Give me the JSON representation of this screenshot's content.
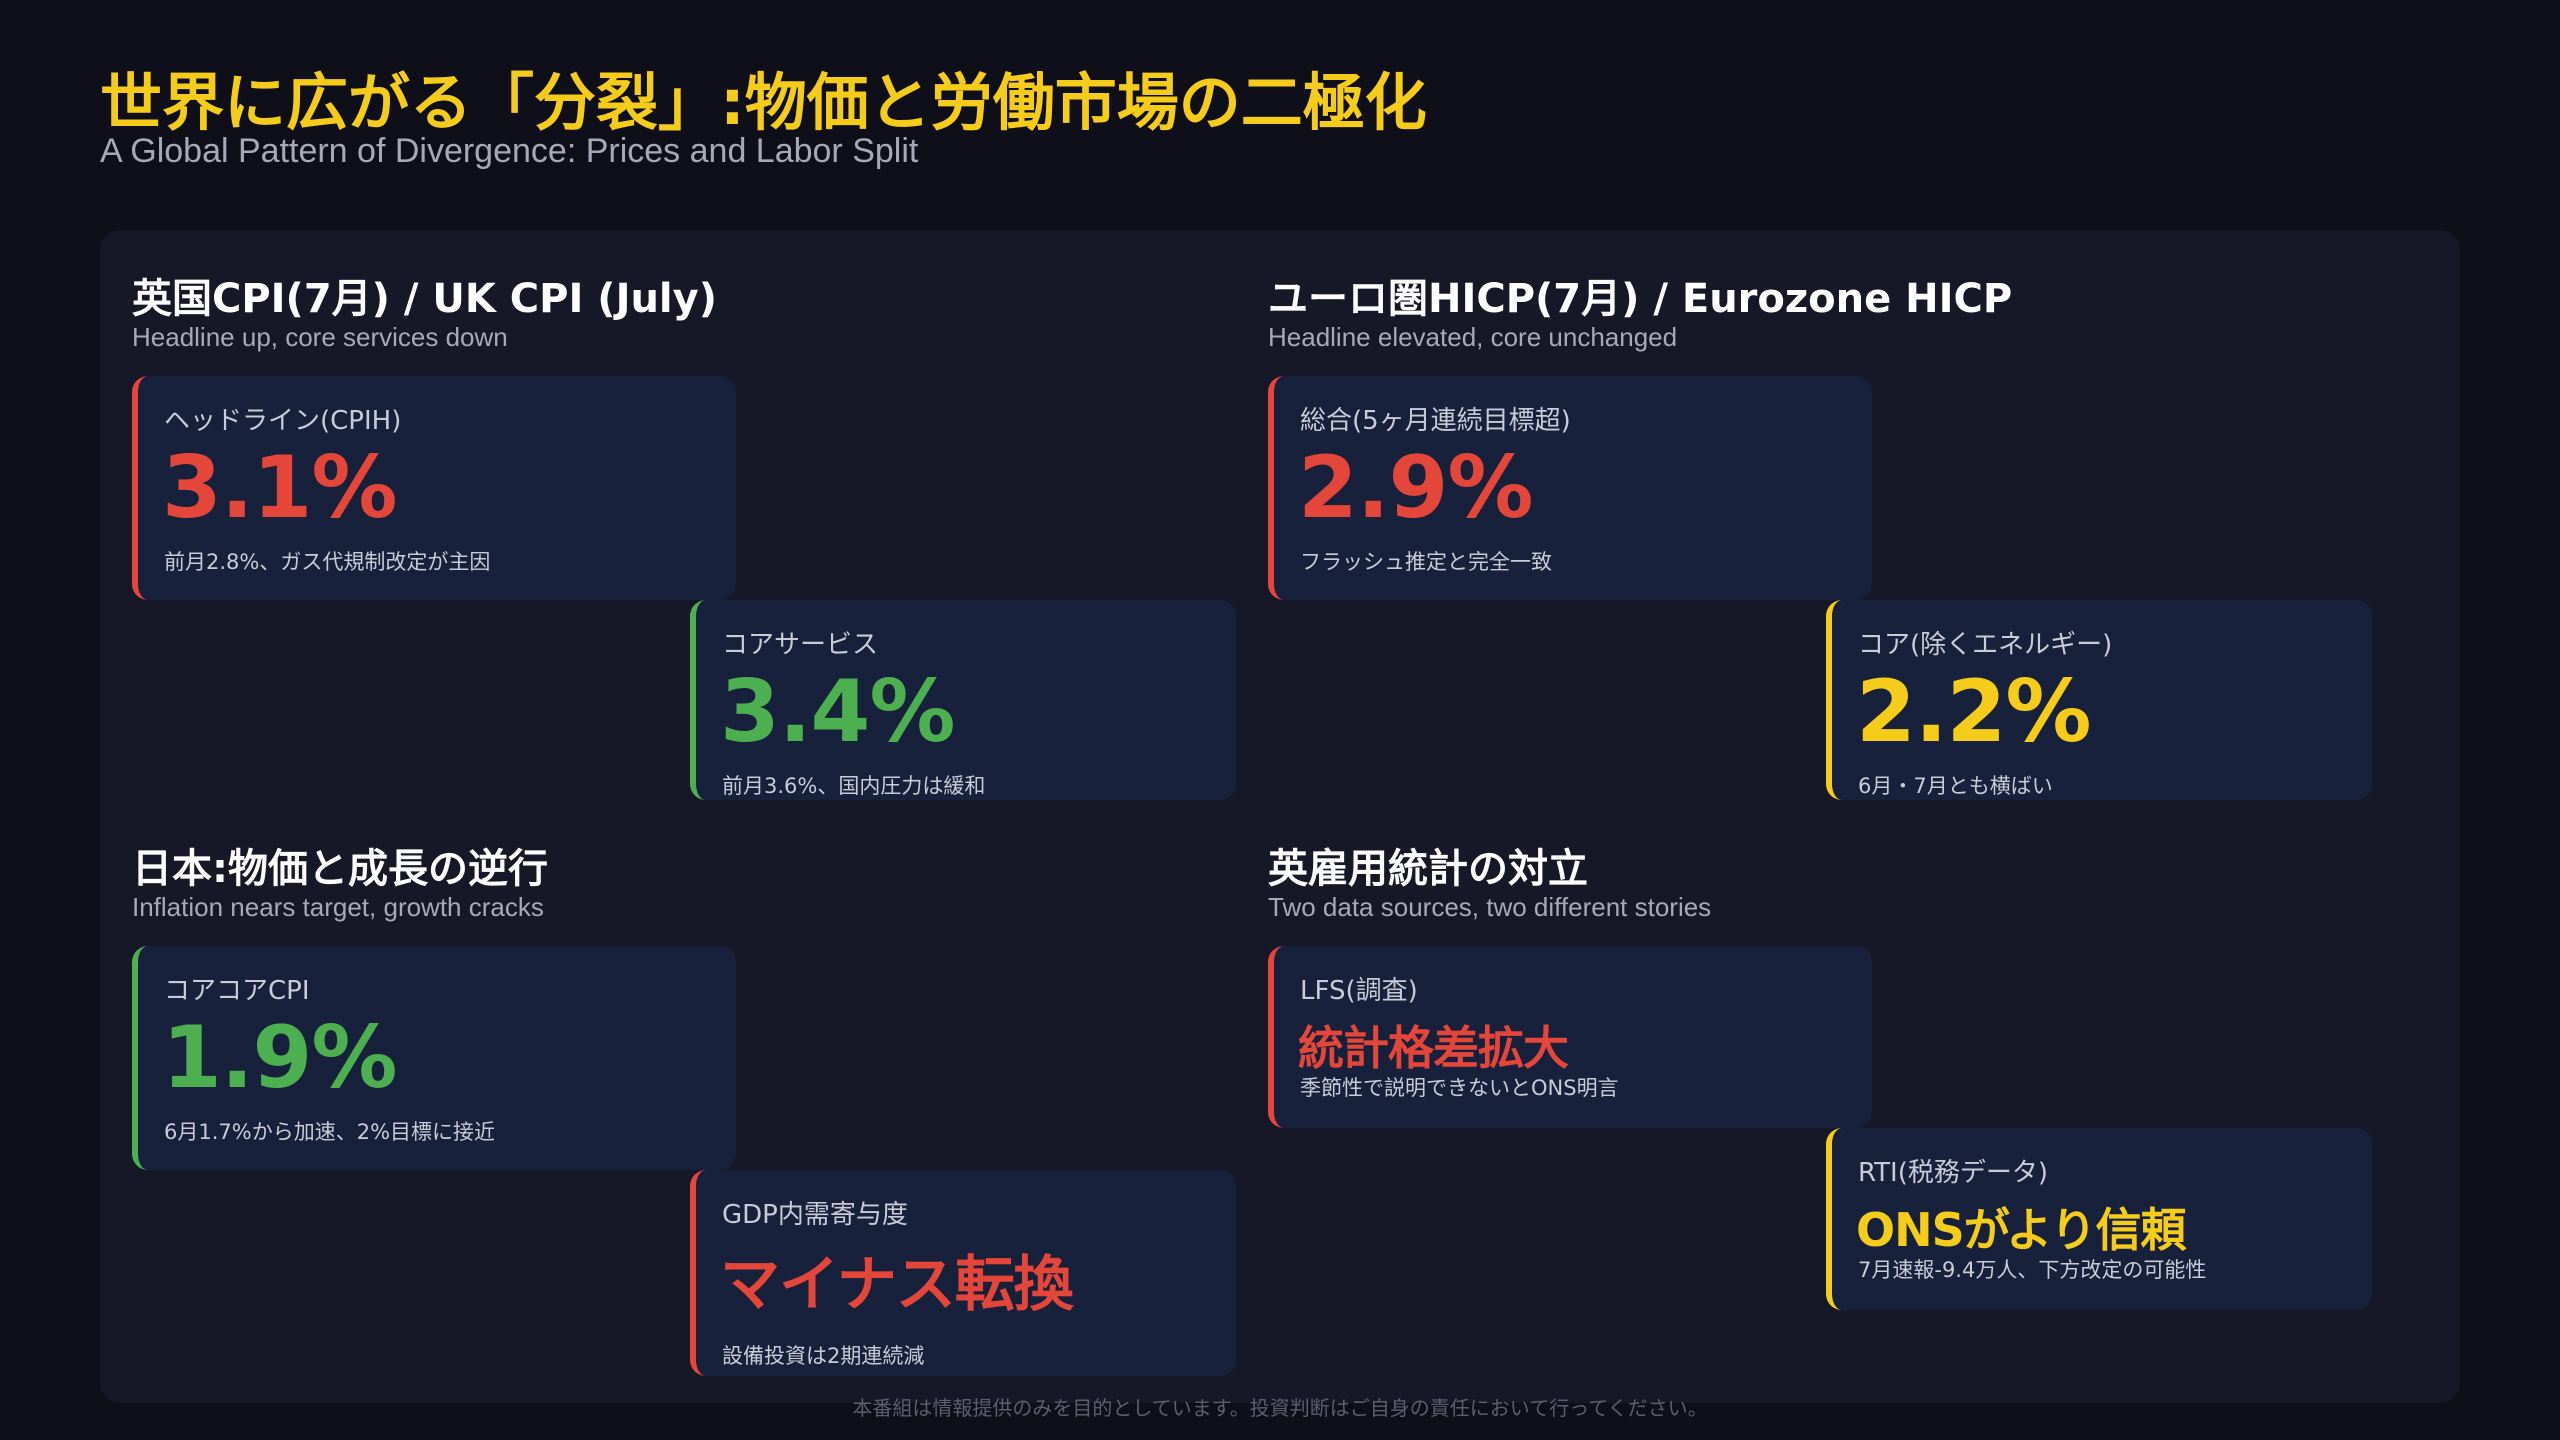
{
  "header": {
    "title": "世界に広がる「分裂」:物価と労働市場の二極化",
    "subtitle": "A Global Pattern of Divergence: Prices and Labor Split"
  },
  "quadrants": {
    "uk": {
      "title": "英国CPI(7月) / UK CPI (July)",
      "subtitle": "Headline up, core services down",
      "cards": [
        {
          "label": "ヘッドライン(CPIH)",
          "value": "3.1%",
          "note": "前月2.8%、ガス代規制改定が主因",
          "accent": "#e5463a"
        },
        {
          "label": "コアサービス",
          "value": "3.4%",
          "note": "前月3.6%、国内圧力は緩和",
          "accent": "#4caf50"
        }
      ]
    },
    "eurozone": {
      "title": "ユーロ圏HICP(7月) / Eurozone HICP",
      "subtitle": "Headline elevated, core unchanged",
      "cards": [
        {
          "label": "総合(5ヶ月連続目標超)",
          "value": "2.9%",
          "note": "フラッシュ推定と完全一致",
          "accent": "#e5463a"
        },
        {
          "label": "コア(除くエネルギー)",
          "value": "2.2%",
          "note": "6月・7月とも横ばい",
          "accent": "#f5cc1a"
        }
      ]
    },
    "japan": {
      "title": "日本:物価と成長の逆行",
      "subtitle": "Inflation nears target, growth cracks",
      "cards": [
        {
          "label": "コアコアCPI",
          "value": "1.9%",
          "note": "6月1.7%から加速、2%目標に接近",
          "accent": "#4caf50"
        },
        {
          "label": "GDP内需寄与度",
          "value": "マイナス転換",
          "note": "設備投資は2期連続減",
          "accent": "#e5463a"
        }
      ]
    },
    "uk_jobs": {
      "title": "英雇用統計の対立",
      "subtitle": "Two data sources, two different stories",
      "cards": [
        {
          "label": "LFS(調査)",
          "value": "統計格差拡大",
          "note": "季節性で説明できないとONS明言",
          "accent": "#e5463a"
        },
        {
          "label": "RTI(税務データ)",
          "value": "ONSがより信頼",
          "note": "7月速報-9.4万人、下方改定の可能性",
          "accent": "#f5cc1a"
        }
      ]
    }
  },
  "footer": {
    "disclaimer": "本番組は情報提供のみを目的としています。投資判断はご自身の責任において行ってください。"
  }
}
